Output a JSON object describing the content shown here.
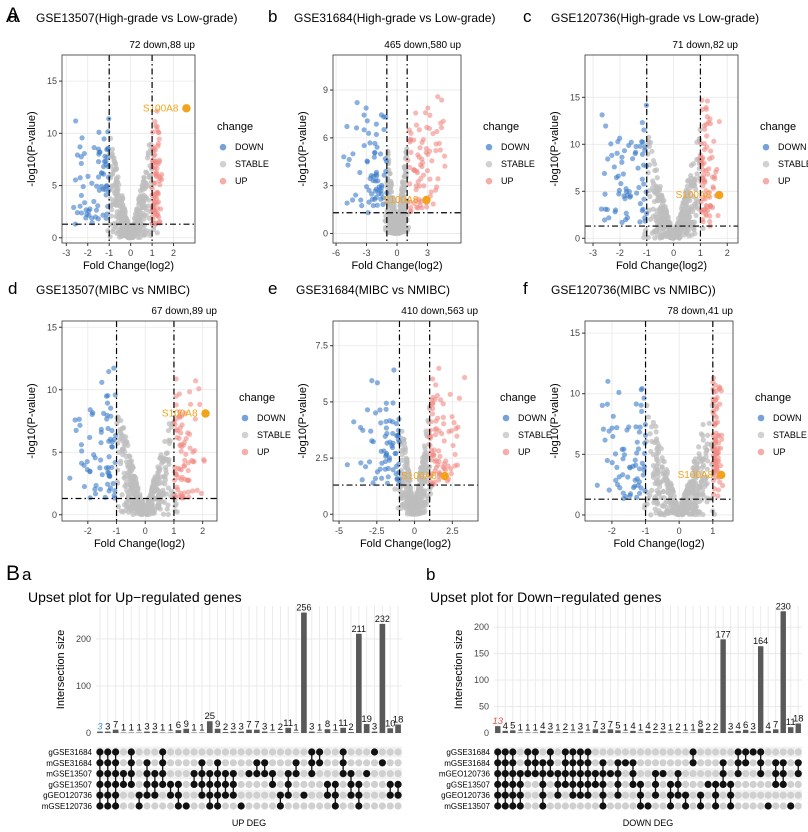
{
  "colors": {
    "down": "#3a7bc8",
    "stable": "#bdbdbd",
    "up": "#f08b84",
    "highlight": "#f3a31b",
    "grid": "#e8e8e8",
    "panel_border": "#333333",
    "bar": "#595959",
    "dot_on": "#111111",
    "dot_off": "#d0d0d0",
    "small_label": "#4a90d9",
    "small_label_red": "#e0554a"
  },
  "section_labels": {
    "A": "A",
    "B": "B"
  },
  "legend": {
    "title": "change",
    "items": [
      "DOWN",
      "STABLE",
      "UP"
    ]
  },
  "chart_data": [
    {
      "type": "scatter",
      "panel": "a",
      "title": "GSE13507(High-grade vs Low-grade)",
      "counts": "72 down,88 up",
      "xlabel": "Fold Change(log2)",
      "ylabel": "-log10(P-value)",
      "xlim": [
        -3.2,
        3.0
      ],
      "ylim": [
        -0.5,
        17.5
      ],
      "xticks": [
        -3,
        -2,
        -1,
        0,
        1,
        2
      ],
      "yticks": [
        0,
        5,
        10,
        15
      ],
      "vlines": [
        -1,
        1
      ],
      "hline": 1.3,
      "highlight": {
        "label": "S100A8",
        "x": 2.6,
        "y": 12.4
      },
      "spread": {
        "down_max_x": -3.0,
        "up_max_x": 1.5,
        "peak": 16,
        "shape": 1.0
      }
    },
    {
      "type": "scatter",
      "panel": "b",
      "title": "GSE31684(High-grade vs Low-grade)",
      "counts": "465 down,580 up",
      "xlabel": "Fold Change(log2)",
      "ylabel": "-log10(P-value)",
      "xlim": [
        -6.3,
        6.3
      ],
      "ylim": [
        -0.6,
        11.2
      ],
      "xticks": [
        -6,
        -3,
        0,
        3
      ],
      "yticks": [
        0,
        3,
        6,
        9
      ],
      "vlines": [
        -1,
        1
      ],
      "hline": 1.3,
      "highlight": {
        "label": "S100A8",
        "x": 2.9,
        "y": 2.1
      },
      "spread": {
        "down_max_x": -5.6,
        "up_max_x": 5.2,
        "peak": 10,
        "shape": 0.9
      }
    },
    {
      "type": "scatter",
      "panel": "c",
      "title": "GSE120736(High-grade vs Low-grade)",
      "counts": "71 down,82 up",
      "xlabel": "Fold Change(log2)",
      "ylabel": "-log10(P-value)",
      "xlim": [
        -3.3,
        2.4
      ],
      "ylim": [
        -0.5,
        19.5
      ],
      "xticks": [
        -3,
        -2,
        -1,
        0,
        1,
        2
      ],
      "yticks": [
        0,
        5,
        10,
        15
      ],
      "vlines": [
        -1,
        1
      ],
      "hline": 1.3,
      "highlight": {
        "label": "S100A8",
        "x": 1.7,
        "y": 4.6
      },
      "spread": {
        "down_max_x": -3.0,
        "up_max_x": 1.8,
        "peak": 17,
        "shape": 1.1
      }
    },
    {
      "type": "scatter",
      "panel": "d",
      "title": "GSE13507(MIBC vs NMIBC)",
      "counts": "67 down,89 up",
      "xlabel": "Fold Change(log2)",
      "ylabel": "-log10(P-value)",
      "xlim": [
        -2.9,
        2.5
      ],
      "ylim": [
        -0.5,
        15.5
      ],
      "xticks": [
        -2,
        -1,
        0,
        1,
        2
      ],
      "yticks": [
        0,
        5,
        10,
        15
      ],
      "vlines": [
        -1,
        1
      ],
      "hline": 1.3,
      "highlight": {
        "label": "S100A8",
        "x": 2.1,
        "y": 8.1
      },
      "spread": {
        "down_max_x": -2.7,
        "up_max_x": 2.1,
        "peak": 14.5,
        "shape": 1.0
      }
    },
    {
      "type": "scatter",
      "panel": "e",
      "title": "GSE31684(MIBC vs NMIBC)",
      "counts": "410 down,563 up",
      "xlabel": "Fold Change(log2)",
      "ylabel": "-log10(P-value)",
      "xlim": [
        -5.4,
        4.2
      ],
      "ylim": [
        -0.3,
        8.6
      ],
      "xticks": [
        -5.0,
        -2.5,
        0.0,
        2.5
      ],
      "yticks": [
        0.0,
        2.5,
        5.0,
        7.5
      ],
      "vlines": [
        -1,
        1
      ],
      "hline": 1.3,
      "highlight": {
        "label": "S100A8",
        "x": 2.0,
        "y": 1.7
      },
      "spread": {
        "down_max_x": -4.6,
        "up_max_x": 3.5,
        "peak": 8,
        "shape": 0.9
      }
    },
    {
      "type": "scatter",
      "panel": "f",
      "title": "GSE120736(MIBC vs NMIBC))",
      "counts": "78 down,41 up",
      "xlabel": "Fold Change(log2)",
      "ylabel": "-log10(P-value)",
      "xlim": [
        -2.8,
        1.6
      ],
      "ylim": [
        -0.5,
        16
      ],
      "xticks": [
        -2,
        -1,
        0,
        1
      ],
      "yticks": [
        0,
        5,
        10,
        15
      ],
      "vlines": [
        -1,
        1
      ],
      "hline": 1.3,
      "highlight": {
        "label": "S100A8",
        "x": 1.25,
        "y": 3.3
      },
      "spread": {
        "down_max_x": -2.6,
        "up_max_x": 1.3,
        "peak": 15,
        "shape": 1.1
      }
    },
    {
      "type": "bar",
      "panel": "a",
      "subtitle": "Upset plot for Up−regulated genes",
      "xlabel": "UP DEG",
      "ylabel": "Intersection size",
      "ylim": [
        0,
        270
      ],
      "yticks": [
        0,
        100,
        200
      ],
      "values": [
        3,
        3,
        7,
        1,
        1,
        1,
        3,
        3,
        1,
        1,
        6,
        9,
        1,
        1,
        25,
        9,
        2,
        3,
        3,
        7,
        7,
        3,
        1,
        2,
        11,
        1,
        256,
        3,
        1,
        8,
        1,
        11,
        2,
        211,
        19,
        3,
        232,
        10,
        18
      ],
      "label_color_index": 0,
      "sets": [
        "gGSE31684",
        "mGSE31684",
        "mGSE13507",
        "gGSE13507",
        "gGEO120736",
        "mGSE120736"
      ]
    },
    {
      "type": "bar",
      "panel": "b",
      "subtitle": "Upset plot for Down−regulated genes",
      "xlabel": "DOWN DEG",
      "ylabel": "Intersection size",
      "ylim": [
        0,
        240
      ],
      "yticks": [
        0,
        50,
        100,
        150,
        200
      ],
      "values": [
        13,
        4,
        5,
        1,
        1,
        1,
        4,
        3,
        1,
        2,
        1,
        3,
        1,
        7,
        3,
        7,
        5,
        1,
        4,
        1,
        4,
        2,
        3,
        1,
        2,
        1,
        1,
        8,
        2,
        2,
        177,
        3,
        4,
        6,
        3,
        164,
        4,
        7,
        230,
        11,
        18
      ],
      "label_color_index": 0,
      "sets": [
        "gGSE31684",
        "mGSE31684",
        "mGEO120736",
        "gGSE13507",
        "gGEO120736",
        "mGSE13507"
      ]
    }
  ]
}
